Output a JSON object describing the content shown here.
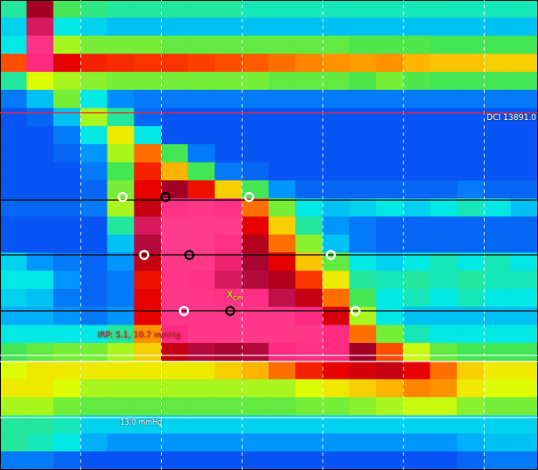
{
  "chart_data": {
    "type": "heatmap",
    "xlim": [
      0,
      20
    ],
    "ylim": [
      0,
      26
    ],
    "xticks": [
      3,
      6,
      9,
      12,
      15,
      18
    ],
    "grid": true,
    "tick_labels": false,
    "zlim": [
      -5,
      170
    ],
    "cells": [
      [
        30,
        120,
        35,
        32,
        30,
        30,
        30,
        30,
        30,
        28,
        28,
        28,
        28,
        28,
        28,
        28,
        28,
        28,
        28,
        28
      ],
      [
        22,
        140,
        25,
        22,
        20,
        20,
        20,
        20,
        20,
        20,
        20,
        20,
        20,
        20,
        20,
        20,
        20,
        20,
        20,
        20
      ],
      [
        25,
        160,
        45,
        40,
        40,
        40,
        38,
        38,
        38,
        38,
        38,
        38,
        38,
        36,
        36,
        36,
        35,
        35,
        35,
        35
      ],
      [
        80,
        150,
        100,
        90,
        88,
        85,
        85,
        82,
        80,
        78,
        75,
        72,
        70,
        68,
        70,
        65,
        62,
        62,
        60,
        60
      ],
      [
        30,
        50,
        45,
        42,
        40,
        40,
        40,
        40,
        40,
        40,
        38,
        38,
        38,
        36,
        40,
        36,
        35,
        35,
        35,
        35
      ],
      [
        12,
        20,
        40,
        25,
        14,
        12,
        12,
        12,
        12,
        12,
        12,
        12,
        12,
        12,
        12,
        12,
        12,
        12,
        12,
        12
      ],
      [
        8,
        10,
        20,
        45,
        30,
        10,
        8,
        8,
        8,
        8,
        8,
        8,
        8,
        8,
        8,
        8,
        8,
        8,
        8,
        8
      ],
      [
        8,
        8,
        12,
        25,
        55,
        25,
        8,
        8,
        8,
        8,
        8,
        8,
        8,
        8,
        8,
        8,
        8,
        8,
        8,
        8
      ],
      [
        8,
        8,
        10,
        15,
        45,
        75,
        35,
        12,
        8,
        8,
        8,
        8,
        8,
        8,
        8,
        8,
        8,
        8,
        8,
        8
      ],
      [
        8,
        8,
        8,
        12,
        35,
        90,
        65,
        35,
        12,
        10,
        8,
        8,
        8,
        8,
        8,
        8,
        8,
        8,
        8,
        8
      ],
      [
        8,
        8,
        8,
        10,
        40,
        100,
        120,
        95,
        60,
        35,
        15,
        10,
        10,
        10,
        10,
        10,
        10,
        12,
        10,
        10
      ],
      [
        10,
        10,
        10,
        12,
        45,
        110,
        160,
        165,
        160,
        75,
        40,
        25,
        20,
        22,
        25,
        22,
        25,
        28,
        25,
        20
      ],
      [
        8,
        8,
        8,
        8,
        30,
        140,
        170,
        175,
        170,
        100,
        60,
        30,
        15,
        12,
        10,
        10,
        10,
        10,
        10,
        10
      ],
      [
        8,
        8,
        8,
        8,
        20,
        130,
        170,
        170,
        160,
        115,
        75,
        42,
        20,
        12,
        10,
        10,
        10,
        10,
        10,
        10
      ],
      [
        22,
        15,
        12,
        10,
        15,
        110,
        165,
        165,
        145,
        125,
        100,
        62,
        38,
        25,
        22,
        25,
        28,
        25,
        28,
        25
      ],
      [
        25,
        25,
        15,
        10,
        12,
        95,
        165,
        160,
        140,
        130,
        115,
        85,
        55,
        30,
        28,
        30,
        28,
        30,
        28,
        28
      ],
      [
        22,
        20,
        12,
        10,
        12,
        100,
        165,
        165,
        160,
        155,
        135,
        110,
        75,
        35,
        25,
        28,
        25,
        28,
        25,
        25
      ],
      [
        18,
        18,
        15,
        12,
        15,
        100,
        165,
        165,
        165,
        165,
        165,
        150,
        105,
        45,
        25,
        20,
        20,
        20,
        20,
        20
      ],
      [
        25,
        25,
        25,
        25,
        30,
        70,
        150,
        165,
        165,
        165,
        165,
        165,
        150,
        75,
        40,
        28,
        25,
        25,
        25,
        25
      ],
      [
        35,
        38,
        40,
        40,
        45,
        60,
        110,
        130,
        125,
        130,
        150,
        160,
        150,
        120,
        80,
        48,
        38,
        35,
        35,
        35
      ],
      [
        50,
        55,
        55,
        55,
        55,
        55,
        55,
        55,
        60,
        65,
        75,
        90,
        100,
        105,
        110,
        100,
        75,
        60,
        55,
        55
      ],
      [
        55,
        55,
        50,
        45,
        45,
        45,
        45,
        45,
        45,
        45,
        45,
        50,
        55,
        60,
        65,
        72,
        70,
        55,
        50,
        50
      ],
      [
        45,
        45,
        40,
        38,
        38,
        38,
        38,
        38,
        38,
        38,
        38,
        40,
        40,
        42,
        45,
        48,
        48,
        42,
        40,
        40
      ],
      [
        30,
        30,
        28,
        22,
        22,
        22,
        22,
        22,
        22,
        22,
        22,
        22,
        22,
        22,
        22,
        22,
        22,
        22,
        22,
        22
      ],
      [
        30,
        28,
        25,
        18,
        15,
        15,
        15,
        15,
        15,
        15,
        15,
        15,
        15,
        15,
        15,
        15,
        15,
        18,
        20,
        20
      ],
      [
        12,
        12,
        10,
        8,
        8,
        8,
        8,
        8,
        8,
        8,
        8,
        8,
        8,
        8,
        8,
        8,
        8,
        10,
        12,
        12
      ]
    ],
    "hlines": [
      {
        "y": 6.24,
        "color": "#ff2020"
      },
      {
        "y": 11.06,
        "color": "#000000"
      },
      {
        "y": 14.1,
        "color": "#000000"
      },
      {
        "y": 17.2,
        "color": "#000000"
      },
      {
        "y": 19.66,
        "color": "#ffffff"
      },
      {
        "y": 20.0,
        "color": "#ffffff"
      },
      {
        "y": 23.1,
        "color": "#ffffff"
      }
    ],
    "markers": [
      {
        "color": "#ffffff",
        "x": [
          4.56,
          5.36,
          6.84,
          9.26,
          12.3,
          13.22
        ],
        "y": [
          10.9,
          14.1,
          17.2,
          10.9,
          14.1,
          17.2
        ]
      },
      {
        "color": "#000000",
        "x": [
          6.15,
          7.04,
          8.56
        ],
        "y": [
          10.9,
          14.1,
          17.2
        ]
      }
    ],
    "annotations": [
      {
        "text": "DCI 13891.0",
        "color": "#ffffff"
      },
      {
        "text": "IRP: 5.1, 10.7 mmHg",
        "color": "#ff3030"
      },
      {
        "text": "13.0 mmHg",
        "color": "#ffffff"
      },
      {
        "text": "X",
        "sub": "CP",
        "color": "#ffff00"
      }
    ]
  }
}
